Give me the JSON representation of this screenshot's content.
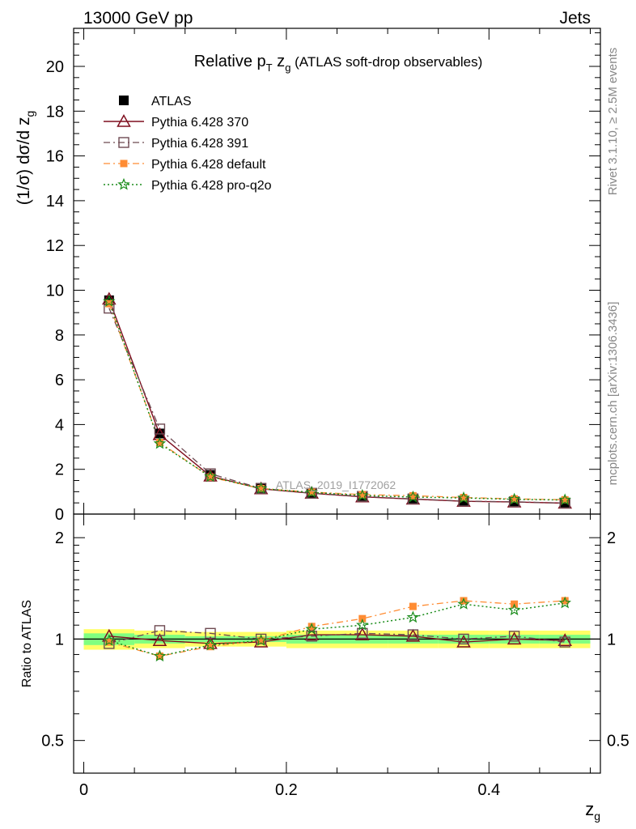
{
  "header": {
    "left": "13000 GeV pp",
    "right": "Jets"
  },
  "side": {
    "rivet": "Rivet 3.1.10, ≥ 2.5M events",
    "mcplots": "mcplots.cern.ch [arXiv:1306.3436]"
  },
  "title": {
    "main": "Relative p",
    "sub_T": "T",
    "mid": " z",
    "sub_g": "g",
    "paren": " (ATLAS soft-drop observables)"
  },
  "ylabel_main": {
    "pre": "(1/σ) dσ/d z",
    "sub": "g"
  },
  "ylabel_ratio": "Ratio to ATLAS",
  "xlabel": {
    "base": "z",
    "sub": "g"
  },
  "watermark": "ATLAS_2019_I1772062",
  "colors": {
    "atlas": "#000000",
    "p370": "#7f0f1f",
    "p391": "#6e4a52",
    "pdefault": "#ff8c33",
    "pproq2o": "#1a8c1a",
    "band_inner": "#80ff80",
    "band_outer": "#ffff66"
  },
  "chart_data": [
    {
      "type": "line",
      "x": [
        0.025,
        0.075,
        0.125,
        0.175,
        0.225,
        0.275,
        0.325,
        0.375,
        0.425,
        0.475
      ],
      "xlim": [
        -0.01,
        0.51
      ],
      "ylim": [
        0,
        21.7
      ],
      "yticks": [
        0,
        2,
        4,
        6,
        8,
        10,
        12,
        14,
        16,
        18,
        20
      ],
      "series": [
        {
          "name": "ATLAS",
          "key": "atlas",
          "marker": "square",
          "values": [
            9.55,
            3.6,
            1.75,
            1.15,
            0.92,
            0.76,
            0.66,
            0.58,
            0.54,
            0.5
          ]
        },
        {
          "name": "Pythia 6.428 370",
          "key": "p370",
          "marker": "triangle",
          "values": [
            9.6,
            3.55,
            1.7,
            1.13,
            0.93,
            0.77,
            0.67,
            0.57,
            0.54,
            0.49
          ]
        },
        {
          "name": "Pythia 6.428 391",
          "key": "p391",
          "marker": "open-square",
          "values": [
            9.2,
            3.8,
            1.8,
            1.15,
            0.93,
            0.79,
            0.68,
            0.58,
            0.55,
            0.49
          ]
        },
        {
          "name": "Pythia 6.428 default",
          "key": "pdefault",
          "marker": "filled-square",
          "values": [
            9.4,
            3.2,
            1.65,
            1.14,
            0.98,
            0.87,
            0.82,
            0.74,
            0.68,
            0.64
          ]
        },
        {
          "name": "Pythia 6.428 pro-q2o",
          "key": "pproq2o",
          "marker": "star",
          "values": [
            9.5,
            3.15,
            1.67,
            1.14,
            0.97,
            0.83,
            0.76,
            0.72,
            0.66,
            0.63
          ]
        }
      ]
    },
    {
      "type": "line",
      "x": [
        0.025,
        0.075,
        0.125,
        0.175,
        0.225,
        0.275,
        0.325,
        0.375,
        0.425,
        0.475
      ],
      "xlim": [
        -0.01,
        0.51
      ],
      "xticks": [
        0,
        0.2,
        0.4
      ],
      "xticklabels": [
        "0",
        "0.2",
        "0.4"
      ],
      "ylim": [
        0.4,
        2.35
      ],
      "ylog": true,
      "yticks": [
        0.5,
        1,
        2
      ],
      "yticklabels": [
        "0.5",
        "1",
        "2"
      ],
      "band_inner": [
        0.04,
        0.03,
        0.02,
        0.02,
        0.03,
        0.03,
        0.03,
        0.03,
        0.03,
        0.03
      ],
      "band_outer": [
        0.07,
        0.06,
        0.05,
        0.05,
        0.06,
        0.06,
        0.06,
        0.06,
        0.06,
        0.06
      ],
      "series": [
        {
          "name": "Pythia 6.428 370",
          "key": "p370",
          "marker": "triangle",
          "values": [
            1.02,
            0.99,
            0.97,
            0.98,
            1.03,
            1.03,
            1.02,
            0.98,
            1.0,
            0.99
          ]
        },
        {
          "name": "Pythia 6.428 391",
          "key": "p391",
          "marker": "open-square",
          "values": [
            0.97,
            1.06,
            1.04,
            1.0,
            1.02,
            1.04,
            1.03,
            1.0,
            1.02,
            0.98
          ]
        },
        {
          "name": "Pythia 6.428 default",
          "key": "pdefault",
          "marker": "filled-square",
          "values": [
            0.98,
            0.89,
            0.95,
            0.99,
            1.09,
            1.15,
            1.25,
            1.3,
            1.27,
            1.3
          ]
        },
        {
          "name": "Pythia 6.428 pro-q2o",
          "key": "pproq2o",
          "marker": "star",
          "values": [
            0.99,
            0.89,
            0.96,
            0.99,
            1.07,
            1.1,
            1.16,
            1.27,
            1.22,
            1.28
          ]
        }
      ]
    }
  ]
}
